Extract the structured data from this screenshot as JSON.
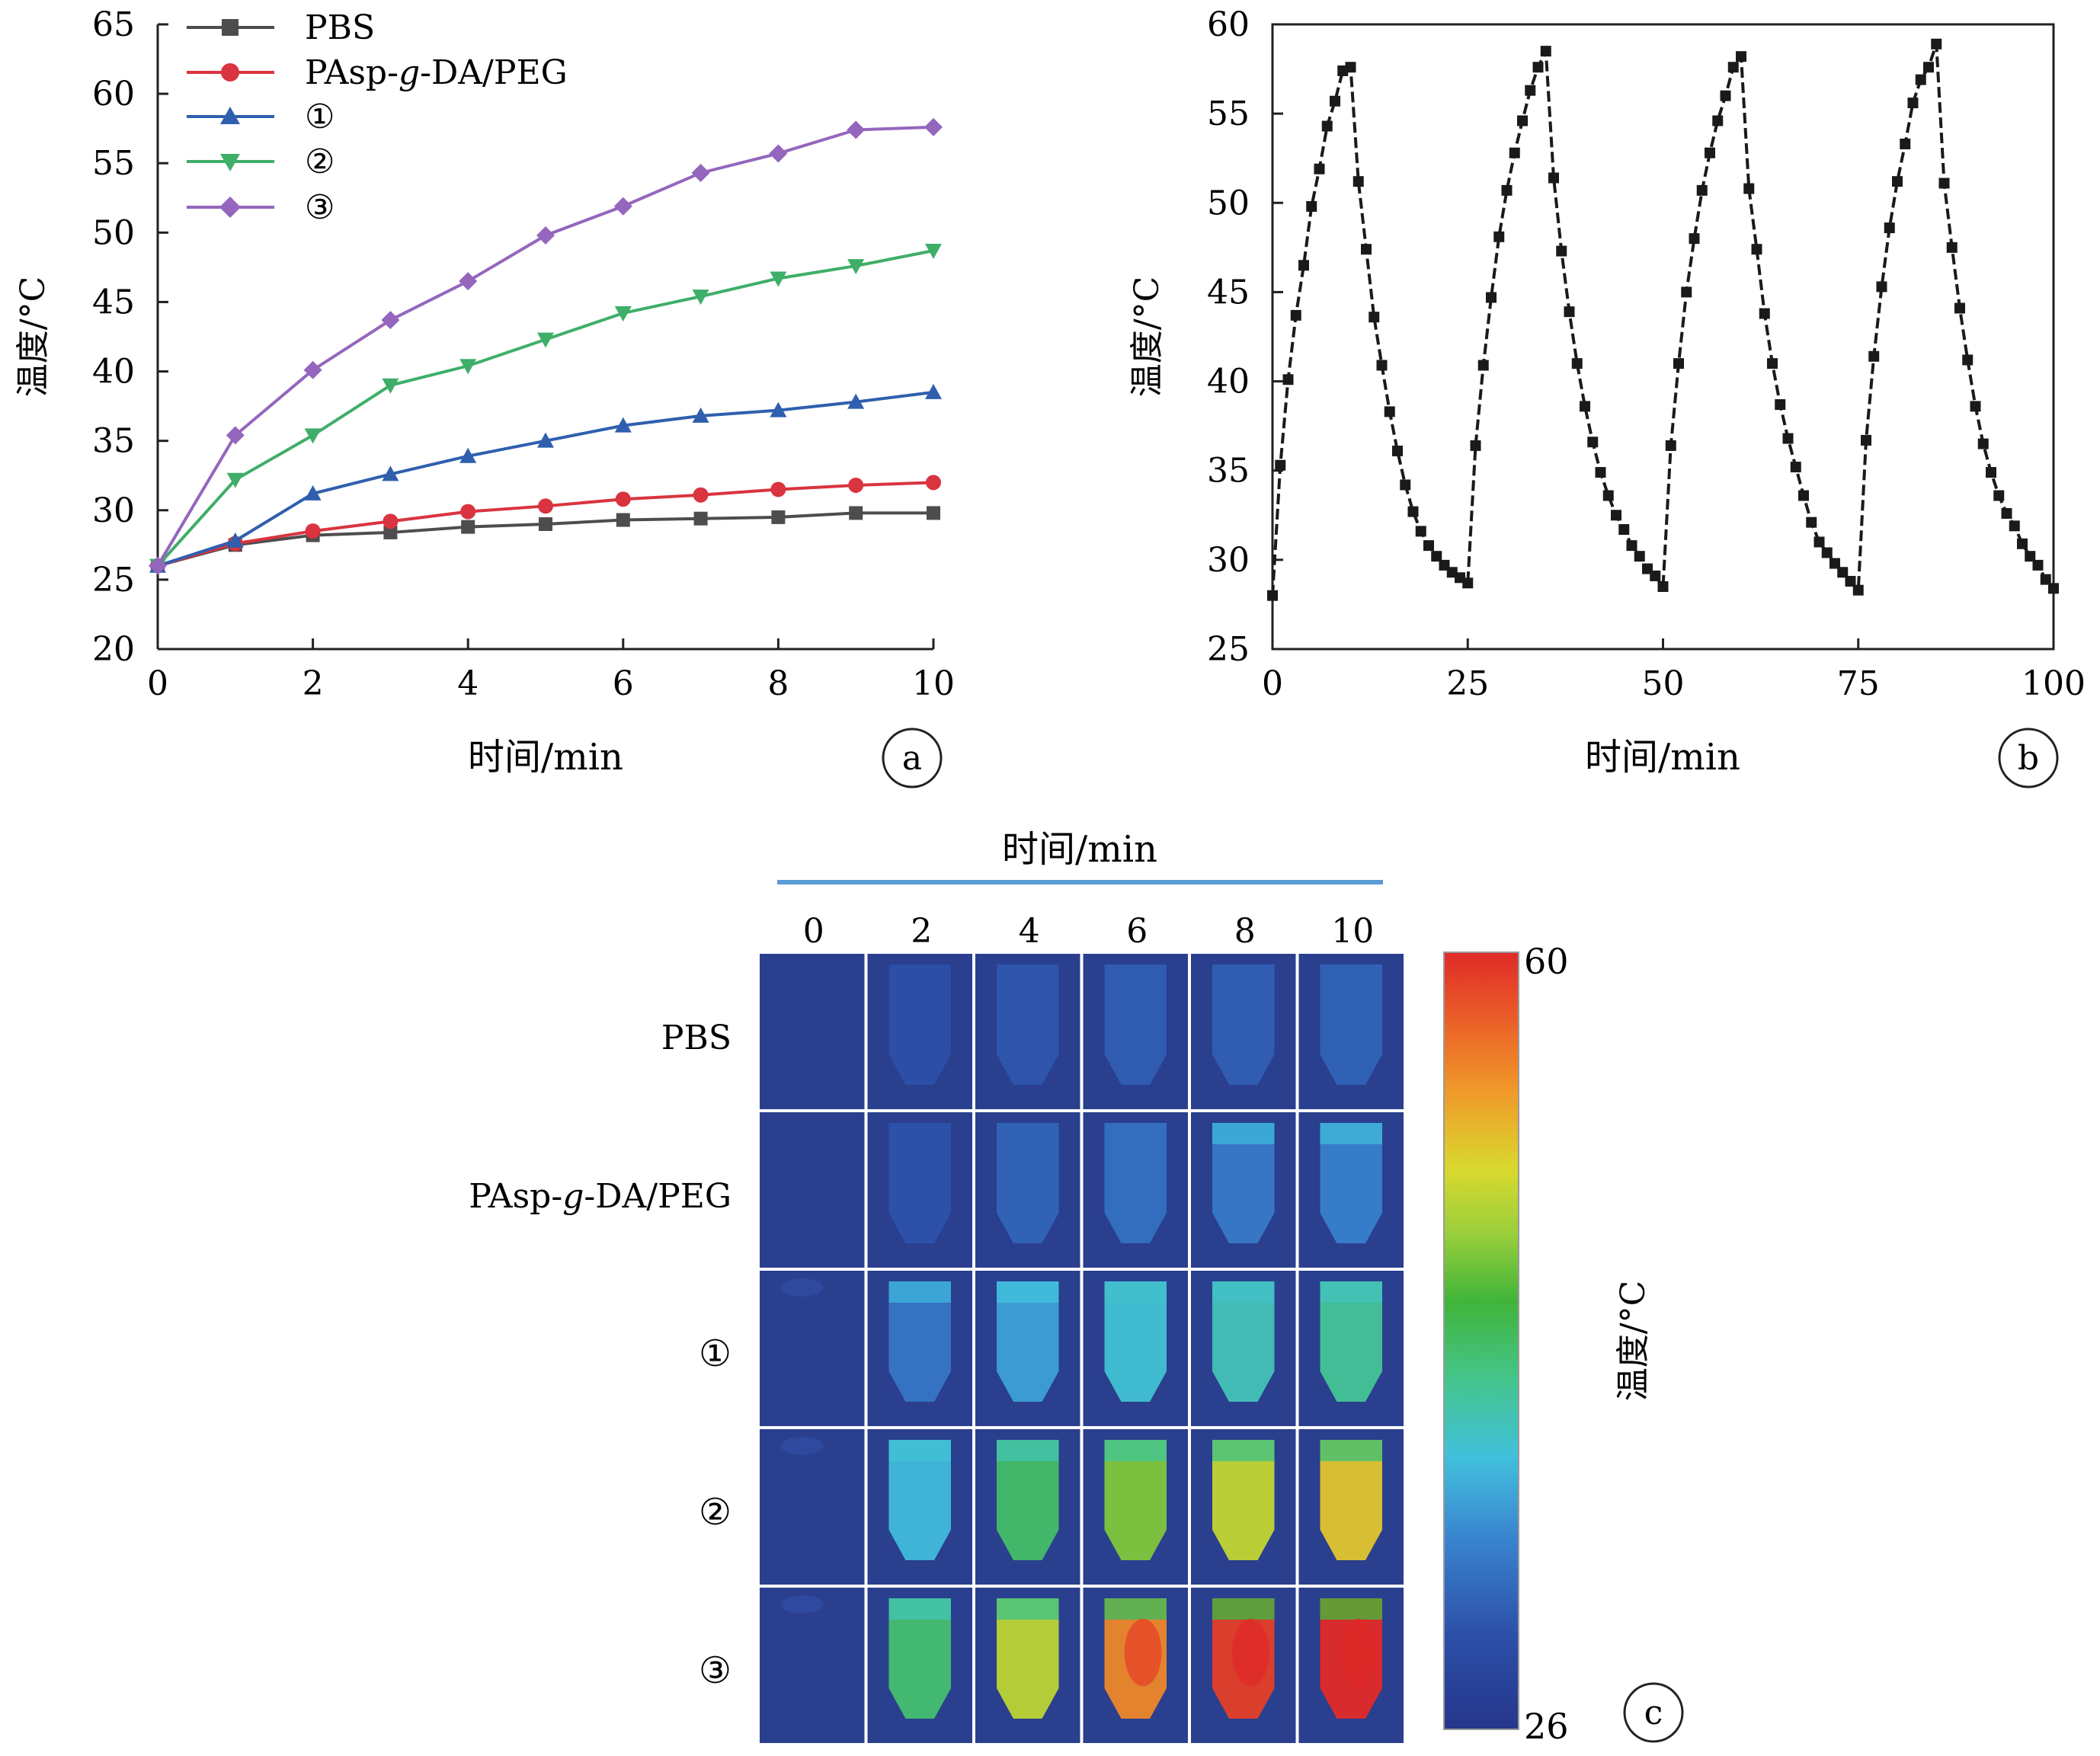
{
  "colors": {
    "pbs": "#4d4d4f",
    "pasp": "#d9343f",
    "s1": "#2f5fae",
    "s2": "#3fae68",
    "s3": "#9566bd",
    "cycle": "#1a1a1a",
    "header_line": "#5b9bd5"
  },
  "chart_data": [
    {
      "panel": "a",
      "type": "line",
      "xlabel": "时间/min",
      "ylabel": "温度/°C",
      "xlim": [
        0,
        10
      ],
      "ylim": [
        20,
        65
      ],
      "xticks": [
        "0",
        "2",
        "4",
        "6",
        "8",
        "10"
      ],
      "yticks": [
        "20",
        "25",
        "30",
        "35",
        "40",
        "45",
        "50",
        "55",
        "60",
        "65"
      ],
      "x": [
        0,
        1,
        2,
        3,
        4,
        5,
        6,
        7,
        8,
        9,
        10
      ],
      "legend_position": "top-left",
      "series": [
        {
          "name": "PBS",
          "marker": "square",
          "color_key": "pbs",
          "values": [
            26.0,
            27.5,
            28.2,
            28.4,
            28.8,
            29.0,
            29.3,
            29.4,
            29.5,
            29.8,
            29.8
          ]
        },
        {
          "name": "PAsp-g-DA/PEG",
          "marker": "circle",
          "color_key": "pasp",
          "values": [
            26.0,
            27.6,
            28.5,
            29.2,
            29.9,
            30.3,
            30.8,
            31.1,
            31.5,
            31.8,
            32.0
          ]
        },
        {
          "name": "①",
          "marker": "triangle-up",
          "color_key": "s1",
          "values": [
            26.0,
            27.8,
            31.2,
            32.6,
            33.9,
            35.0,
            36.1,
            36.8,
            37.2,
            37.8,
            38.5
          ]
        },
        {
          "name": "②",
          "marker": "triangle-down",
          "color_key": "s2",
          "values": [
            26.0,
            32.2,
            35.4,
            39.0,
            40.4,
            42.3,
            44.2,
            45.4,
            46.7,
            47.6,
            48.7
          ]
        },
        {
          "name": "③",
          "marker": "diamond",
          "color_key": "s3",
          "values": [
            26.0,
            35.4,
            40.1,
            43.7,
            46.5,
            49.8,
            51.9,
            54.3,
            55.7,
            57.4,
            57.6
          ]
        }
      ]
    },
    {
      "panel": "b",
      "type": "line",
      "xlabel": "时间/min",
      "ylabel": "温度/°C",
      "xlim": [
        0,
        100
      ],
      "ylim": [
        25,
        60
      ],
      "xticks": [
        "0",
        "25",
        "50",
        "75",
        "100"
      ],
      "yticks": [
        "25",
        "30",
        "35",
        "40",
        "45",
        "50",
        "55",
        "60"
      ],
      "series": [
        {
          "marker": "square",
          "color_key": "cycle",
          "x": [
            0,
            1,
            2,
            3,
            4,
            5,
            6,
            7,
            8,
            9,
            10,
            11,
            12,
            13,
            14,
            15,
            16,
            17,
            18,
            19,
            20,
            21,
            22,
            23,
            24,
            25,
            26,
            27,
            28,
            29,
            30,
            31,
            32,
            33,
            34,
            35,
            36,
            37,
            38,
            39,
            40,
            41,
            42,
            43,
            44,
            45,
            46,
            47,
            48,
            49,
            50,
            51,
            52,
            53,
            54,
            55,
            56,
            57,
            58,
            59,
            60,
            61,
            62,
            63,
            64,
            65,
            66,
            67,
            68,
            69,
            70,
            71,
            72,
            73,
            74,
            75,
            76,
            77,
            78,
            79,
            80,
            81,
            82,
            83,
            84,
            85,
            86,
            87,
            88,
            89,
            90,
            91,
            92,
            93,
            94,
            95,
            96,
            97,
            98,
            99,
            100
          ],
          "y": [
            28.0,
            35.3,
            40.1,
            43.7,
            46.5,
            49.8,
            51.9,
            54.3,
            55.7,
            57.4,
            57.6,
            51.2,
            47.4,
            43.6,
            40.9,
            38.3,
            36.1,
            34.2,
            32.7,
            31.6,
            30.8,
            30.2,
            29.7,
            29.3,
            29.0,
            28.7,
            36.4,
            40.9,
            44.7,
            48.1,
            50.7,
            52.8,
            54.6,
            56.3,
            57.6,
            58.5,
            51.4,
            47.3,
            43.9,
            41.0,
            38.6,
            36.6,
            34.9,
            33.6,
            32.5,
            31.7,
            30.8,
            30.2,
            29.5,
            29.1,
            28.5,
            36.4,
            41.0,
            45.0,
            48.0,
            50.7,
            52.8,
            54.6,
            56.0,
            57.6,
            58.2,
            50.8,
            47.4,
            43.8,
            41.0,
            38.7,
            36.8,
            35.2,
            33.6,
            32.1,
            31.0,
            30.4,
            29.8,
            29.3,
            28.8,
            28.3,
            36.7,
            41.4,
            45.3,
            48.6,
            51.2,
            53.3,
            55.6,
            56.9,
            57.6,
            58.9,
            51.1,
            47.5,
            44.1,
            41.2,
            38.6,
            36.5,
            34.9,
            33.6,
            32.6,
            31.9,
            30.9,
            30.2,
            29.7,
            28.9,
            28.4
          ]
        }
      ]
    },
    {
      "panel": "c",
      "type": "heatmap",
      "header_label": "时间/min",
      "columns": [
        "0",
        "2",
        "4",
        "6",
        "8",
        "10"
      ],
      "rows": [
        "PBS",
        "PAsp-g-DA/PEG",
        "①",
        "②",
        "③"
      ],
      "colorbar_label": "温度/°C",
      "colorbar_range": [
        26,
        60
      ],
      "temperatures": [
        [
          26.0,
          28.2,
          28.8,
          29.3,
          29.5,
          29.8
        ],
        [
          26.0,
          28.5,
          29.9,
          30.8,
          31.5,
          32.0
        ],
        [
          26.0,
          31.2,
          33.9,
          36.1,
          37.2,
          38.5
        ],
        [
          26.0,
          35.4,
          40.4,
          44.2,
          46.7,
          48.7
        ],
        [
          26.0,
          40.1,
          46.5,
          51.9,
          55.7,
          57.6
        ]
      ]
    }
  ],
  "panel_letters": {
    "a": "a",
    "b": "b",
    "c": "c"
  },
  "legend_a": {
    "pbs": "PBS",
    "pasp_prefix": "PAsp-",
    "pasp_g": "g",
    "pasp_suffix": "-DA/PEG",
    "s1": "①",
    "s2": "②",
    "s3": "③"
  },
  "row_labels_c": {
    "pbs": "PBS",
    "pasp_prefix": "PAsp-",
    "pasp_g": "g",
    "pasp_suffix": "-DA/PEG",
    "s1": "①",
    "s2": "②",
    "s3": "③"
  }
}
